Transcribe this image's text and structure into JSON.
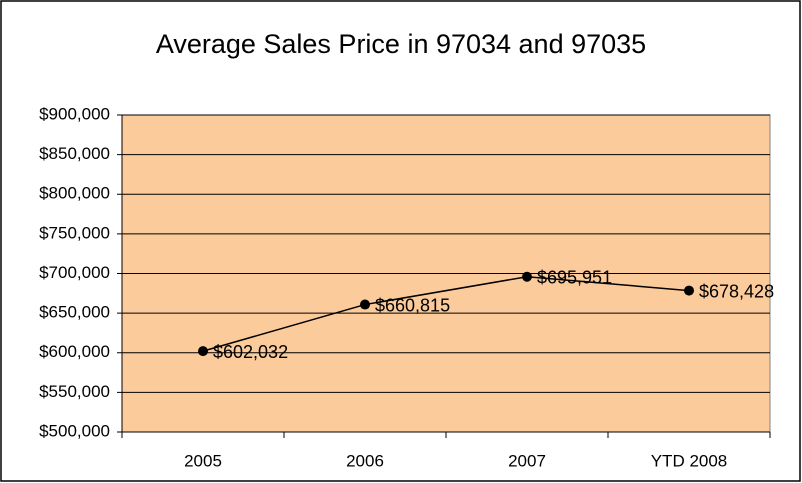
{
  "chart_data": {
    "type": "line",
    "title": "Average Sales Price in 97034 and 97035",
    "categories": [
      "2005",
      "2006",
      "2007",
      "YTD 2008"
    ],
    "values": [
      602032,
      660815,
      695951,
      678428
    ],
    "value_labels": [
      "$602,032",
      "$660,815",
      "$695,951",
      "$678,428"
    ],
    "color": "#000000",
    "plot_background": "#FBCB9C",
    "ylim": [
      500000,
      900000
    ],
    "yticks": [
      {
        "value": 500000,
        "label": "$500,000"
      },
      {
        "value": 550000,
        "label": "$550,000"
      },
      {
        "value": 600000,
        "label": "$600,000"
      },
      {
        "value": 650000,
        "label": "$650,000"
      },
      {
        "value": 700000,
        "label": "$700,000"
      },
      {
        "value": 750000,
        "label": "$750,000"
      },
      {
        "value": 800000,
        "label": "$800,000"
      },
      {
        "value": 850000,
        "label": "$850,000"
      },
      {
        "value": 900000,
        "label": "$900,000"
      }
    ],
    "grid": true
  }
}
